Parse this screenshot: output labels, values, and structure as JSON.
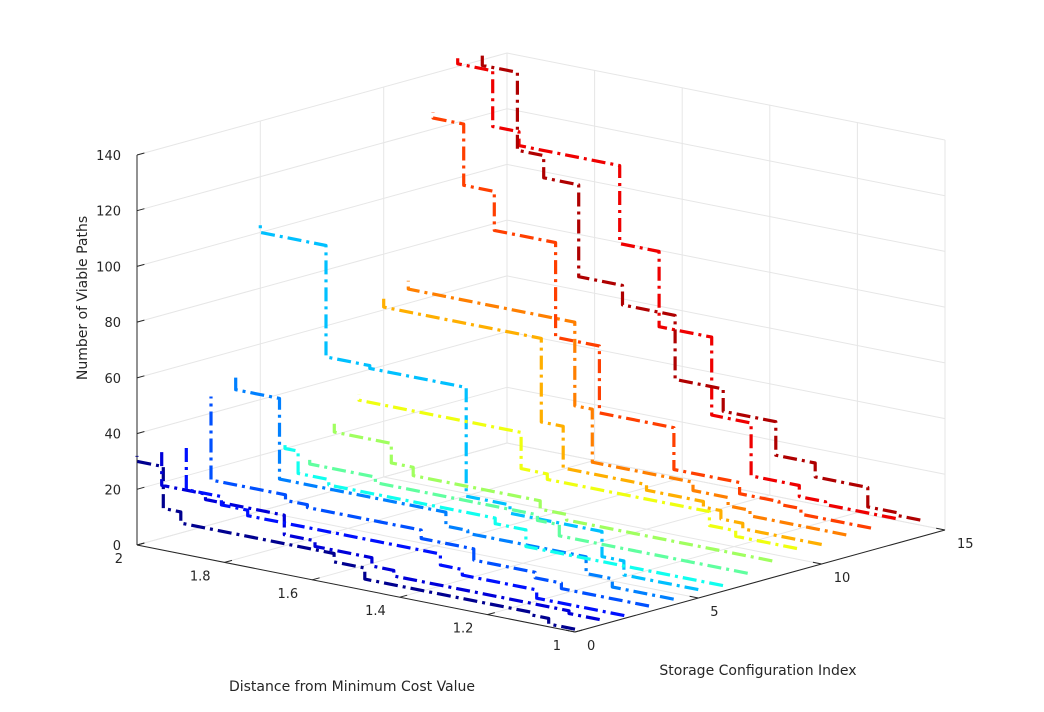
{
  "chart_data": {
    "type": "line",
    "view": "3d",
    "title": "",
    "xlabel": "Storage Configuration Index",
    "ylabel": "Distance from Minimum Cost Value",
    "zlabel": "Number of Viable Paths",
    "xlim": [
      0,
      15
    ],
    "ylim": [
      1,
      2
    ],
    "zlim": [
      0,
      140
    ],
    "x_ticks": [
      "0",
      "5",
      "10",
      "15"
    ],
    "y_ticks": [
      "1",
      "1.2",
      "1.4",
      "1.6",
      "1.8",
      "2"
    ],
    "z_ticks": [
      "0",
      "20",
      "40",
      "60",
      "80",
      "100",
      "120",
      "140"
    ],
    "grid": true,
    "line_style": "dash-dot",
    "series": [
      {
        "x": 0,
        "color": "#00008f",
        "y": [
          1,
          1.06,
          1.1,
          1.48,
          1.55,
          1.9,
          1.94,
          2
        ],
        "z": [
          1,
          3,
          4,
          8,
          11,
          15,
          30,
          32
        ]
      },
      {
        "x": 1,
        "color": "#0000d9",
        "y": [
          1,
          1.07,
          1.47,
          1.52,
          1.65,
          1.72,
          1.9,
          2
        ],
        "z": [
          2,
          3,
          5,
          8,
          10,
          17,
          19,
          31
        ]
      },
      {
        "x": 2,
        "color": "#0010ff",
        "y": [
          1,
          1.2,
          1.37,
          1.42,
          1.86,
          1.92,
          2
        ],
        "z": [
          1,
          4,
          6,
          10,
          12,
          15,
          30
        ]
      },
      {
        "x": 3,
        "color": "#0050ff",
        "y": [
          1,
          1.2,
          1.26,
          1.4,
          1.52,
          1.78,
          1.83,
          2
        ],
        "z": [
          2,
          4,
          6,
          10,
          13,
          14,
          16,
          46
        ]
      },
      {
        "x": 4,
        "color": "#0080ff",
        "y": [
          1,
          1.14,
          1.2,
          1.47,
          1.52,
          1.9,
          2
        ],
        "z": [
          2,
          5,
          11,
          12,
          17,
          46,
          51
        ]
      },
      {
        "x": 5,
        "color": "#00c0ff",
        "y": [
          1,
          1.17,
          1.22,
          1.43,
          1.53,
          1.75,
          1.85,
          2
        ],
        "z": [
          3,
          8,
          17,
          20,
          59,
          60,
          100,
          104
        ]
      },
      {
        "x": 6,
        "color": "#10ffef",
        "y": [
          1,
          1.45,
          1.52,
          1.9,
          1.97,
          2
        ],
        "z": [
          2,
          8,
          10,
          12,
          20,
          23
        ]
      },
      {
        "x": 7,
        "color": "#60ff9f",
        "y": [
          1,
          1.43,
          1.48,
          1.85,
          2
        ],
        "z": [
          4,
          8,
          10,
          12,
          14
        ]
      },
      {
        "x": 8,
        "color": "#a0ff5f",
        "y": [
          1,
          1.47,
          1.53,
          1.82,
          1.87,
          2
        ],
        "z": [
          6,
          8,
          11,
          14,
          21,
          24
        ]
      },
      {
        "x": 9,
        "color": "#efff10",
        "y": [
          1,
          1.14,
          1.2,
          1.57,
          1.63,
          2
        ],
        "z": [
          8,
          10,
          15,
          17,
          30,
          32
        ]
      },
      {
        "x": 10,
        "color": "#ffaf00",
        "y": [
          1,
          1.18,
          1.23,
          1.27,
          1.4,
          1.59,
          1.64,
          2
        ],
        "z": [
          7,
          9,
          12,
          14,
          16,
          31,
          61,
          64
        ]
      },
      {
        "x": 11,
        "color": "#ff7f00",
        "y": [
          1,
          1.22,
          1.27,
          1.35,
          1.58,
          1.62,
          2
        ],
        "z": [
          8,
          10,
          13,
          16,
          35,
          65,
          68
        ]
      },
      {
        "x": 12,
        "color": "#ff3f00",
        "y": [
          1,
          1.16,
          1.21,
          1.3,
          1.45,
          1.62,
          1.72,
          1.86,
          1.93,
          2
        ],
        "z": [
          8,
          10,
          11,
          15,
          30,
          54,
          88,
          102,
          124,
          126
        ]
      },
      {
        "x": 13,
        "color": "#ef0000",
        "y": [
          1,
          1.16,
          1.22,
          1.33,
          1.42,
          1.54,
          1.63,
          1.86,
          1.92,
          2
        ],
        "z": [
          9,
          10,
          14,
          33,
          61,
          88,
          116,
          121,
          141,
          143
        ]
      },
      {
        "x": 14,
        "color": "#af0000",
        "y": [
          1,
          1.05,
          1.12,
          1.24,
          1.33,
          1.45,
          1.56,
          1.68,
          1.78,
          1.86,
          1.92,
          2
        ],
        "z": [
          6,
          7,
          14,
          19,
          31,
          39,
          62,
          69,
          102,
          110,
          138,
          143
        ]
      }
    ]
  }
}
